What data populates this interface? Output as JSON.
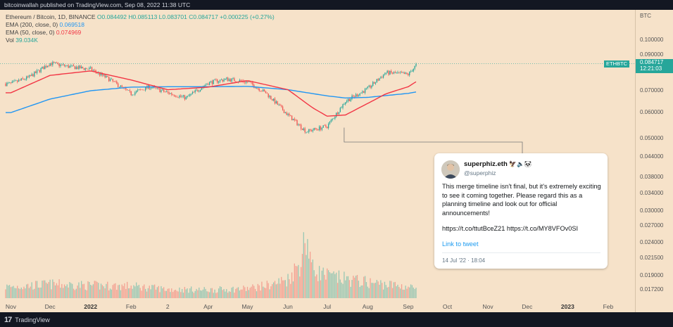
{
  "header": {
    "published": "bitcoinwallah published on TradingView.com, Sep 08, 2022 11:38 UTC"
  },
  "legend": {
    "symbol": "Ethereum / Bitcoin, 1D, BINANCE",
    "ohlc": "O0.084492 H0.085113 L0.083701 C0.084717 +0.000225 (+0.27%)",
    "ema200_label": "EMA (200, close, 0)",
    "ema200_value": "0.069518",
    "ema50_label": "EMA (50, close, 0)",
    "ema50_value": "0.074969",
    "vol_label": "Vol",
    "vol_value": "39.034K"
  },
  "price_axis": {
    "currency": "BTC",
    "last_price": "0.084717",
    "countdown": "12:21:03",
    "symbol_tag": "ETHBTC"
  },
  "footer": {
    "brand": "TradingView"
  },
  "tweet": {
    "name": "superphiz.eth",
    "name_emoji": "🦅🔈🐼",
    "handle": "@superphiz",
    "body": "This merge timeline isn't final, but it's extremely exciting to see it coming together. Please regard this as a planning timeline and look out for official announcements!",
    "links": "https://t.co/ttutBceZ21 https://t.co/MY8VFOv0SI",
    "cta": "Link to tweet",
    "date": "14 Jul '22 · 18:04"
  },
  "colors": {
    "background": "#f6e2c9",
    "up": "#26a69a",
    "down": "#ef5350",
    "ema200": "#2196f3",
    "ema50": "#f23645"
  },
  "chart_data": {
    "type": "line",
    "title": "Ethereum / Bitcoin, 1D, BINANCE",
    "y_scale": "log",
    "ylim": [
      0.016,
      0.112
    ],
    "y_ticks": [
      "0.100000",
      "0.090000",
      "0.080000",
      "0.070000",
      "0.060000",
      "0.050000",
      "0.044000",
      "0.038000",
      "0.034000",
      "0.030000",
      "0.027000",
      "0.024000",
      "0.021500",
      "0.019000",
      "0.017200"
    ],
    "x_ticks": [
      "Nov",
      "Dec",
      "2022",
      "Feb",
      "2",
      "Apr",
      "May",
      "Jun",
      "Jul",
      "Aug",
      "Sep",
      "Oct",
      "Nov",
      "Dec",
      "2023",
      "Feb"
    ],
    "x_ticks_bold": [
      "2022",
      "2023"
    ],
    "price_series": {
      "name": "ETHBTC",
      "x": [
        "2021-11-01",
        "2021-11-15",
        "2021-12-01",
        "2021-12-15",
        "2022-01-01",
        "2022-01-15",
        "2022-02-01",
        "2022-02-15",
        "2022-03-01",
        "2022-03-15",
        "2022-04-01",
        "2022-04-15",
        "2022-05-01",
        "2022-05-15",
        "2022-06-01",
        "2022-06-15",
        "2022-07-01",
        "2022-07-15",
        "2022-08-01",
        "2022-08-15",
        "2022-09-01",
        "2022-09-08"
      ],
      "close": [
        0.0735,
        0.077,
        0.085,
        0.083,
        0.0815,
        0.076,
        0.0685,
        0.072,
        0.069,
        0.0665,
        0.074,
        0.076,
        0.0745,
        0.069,
        0.059,
        0.0525,
        0.0545,
        0.065,
        0.071,
        0.0795,
        0.0785,
        0.0847
      ]
    },
    "series": [
      {
        "name": "EMA (200, close, 0)",
        "x": [
          "2021-11-01",
          "2021-12-01",
          "2022-01-01",
          "2022-02-01",
          "2022-03-01",
          "2022-04-01",
          "2022-05-01",
          "2022-06-01",
          "2022-07-01",
          "2022-07-15",
          "2022-08-01",
          "2022-09-01",
          "2022-09-08"
        ],
        "values": [
          0.06,
          0.066,
          0.07,
          0.0718,
          0.072,
          0.072,
          0.0722,
          0.0705,
          0.0675,
          0.0665,
          0.0668,
          0.0687,
          0.0695
        ]
      },
      {
        "name": "EMA (50, close, 0)",
        "x": [
          "2021-11-01",
          "2021-12-01",
          "2022-01-01",
          "2022-02-01",
          "2022-03-01",
          "2022-04-01",
          "2022-05-01",
          "2022-06-01",
          "2022-06-20",
          "2022-07-01",
          "2022-07-15",
          "2022-08-01",
          "2022-08-15",
          "2022-09-01",
          "2022-09-08"
        ],
        "values": [
          0.069,
          0.078,
          0.0805,
          0.0755,
          0.0705,
          0.0718,
          0.0752,
          0.0705,
          0.062,
          0.0585,
          0.059,
          0.064,
          0.0685,
          0.072,
          0.075
        ]
      }
    ],
    "volume": {
      "name": "Vol",
      "x": [
        "2021-11-01",
        "2021-12-01",
        "2022-01-01",
        "2022-02-01",
        "2022-03-01",
        "2022-04-01",
        "2022-05-01",
        "2022-05-20",
        "2022-06-01",
        "2022-06-10",
        "2022-06-15",
        "2022-06-20",
        "2022-07-01",
        "2022-07-15",
        "2022-08-01",
        "2022-09-01",
        "2022-09-08"
      ],
      "values": [
        18,
        22,
        20,
        19,
        14,
        13,
        15,
        22,
        30,
        55,
        100,
        45,
        35,
        30,
        25,
        18,
        15
      ],
      "unit": "relative"
    }
  }
}
